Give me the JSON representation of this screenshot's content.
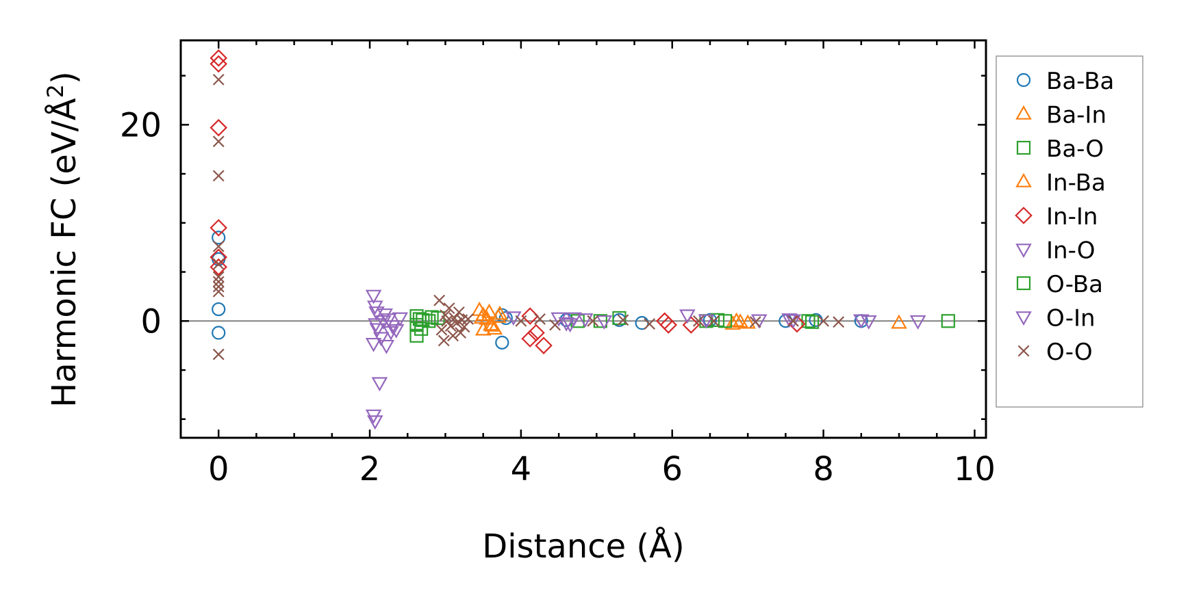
{
  "chart_data": {
    "type": "scatter",
    "xlabel": "Distance (Å)",
    "ylabel": "Harmonic FC (eV/Å²)",
    "xlim": [
      -0.5,
      10.15
    ],
    "ylim": [
      -11.9,
      28.6
    ],
    "xticks": [
      0,
      2,
      4,
      6,
      8,
      10
    ],
    "xtick_labels": [
      "0",
      "2",
      "4",
      "6",
      "8",
      "10"
    ],
    "yticks": [
      0,
      20
    ],
    "ytick_labels": [
      "0",
      "20"
    ],
    "reference_line_y": 0,
    "grid": false,
    "legend_position": "outside-right",
    "series": [
      {
        "name": "Ba-Ba",
        "color": "#1f77b4",
        "marker": "circle",
        "points": [
          [
            0,
            8.5
          ],
          [
            0,
            6.3
          ],
          [
            0,
            1.2
          ],
          [
            0,
            -1.2
          ],
          [
            3.75,
            0.6
          ],
          [
            3.75,
            -2.2
          ],
          [
            3.8,
            0.3
          ],
          [
            4.6,
            0.1
          ],
          [
            5.3,
            0.1
          ],
          [
            5.6,
            -0.2
          ],
          [
            6.5,
            0.1
          ],
          [
            7.5,
            0.0
          ],
          [
            7.9,
            0.1
          ],
          [
            8.5,
            0.0
          ]
        ]
      },
      {
        "name": "Ba-In",
        "color": "#ff7f0e",
        "marker": "triangle-up",
        "points": [
          [
            3.45,
            1.1
          ],
          [
            3.5,
            0.6
          ],
          [
            3.55,
            0.2
          ],
          [
            3.6,
            -0.4
          ],
          [
            3.65,
            -0.8
          ],
          [
            3.7,
            0.4
          ],
          [
            3.5,
            -0.9
          ],
          [
            3.58,
            0.9
          ],
          [
            6.8,
            -0.3
          ],
          [
            6.85,
            0.0
          ],
          [
            7.0,
            -0.2
          ],
          [
            9.0,
            -0.2
          ]
        ]
      },
      {
        "name": "Ba-O",
        "color": "#2ca02c",
        "marker": "square",
        "points": [
          [
            2.62,
            0.5
          ],
          [
            2.62,
            -0.4
          ],
          [
            2.62,
            -1.5
          ],
          [
            2.7,
            0.1
          ],
          [
            2.78,
            0.0
          ],
          [
            2.9,
            0.3
          ],
          [
            4.75,
            0.0
          ],
          [
            5.05,
            0.0
          ],
          [
            5.3,
            0.3
          ],
          [
            6.45,
            0.0
          ],
          [
            6.6,
            0.1
          ],
          [
            7.8,
            0.0
          ],
          [
            9.65,
            0.0
          ]
        ]
      },
      {
        "name": "In-Ba",
        "color": "#ff7f0e",
        "marker": "triangle-up",
        "points": [
          [
            3.48,
            0.3
          ],
          [
            3.62,
            -0.5
          ],
          [
            3.72,
            0.7
          ],
          [
            6.9,
            -0.1
          ]
        ]
      },
      {
        "name": "In-In",
        "color": "#d62728",
        "marker": "diamond",
        "points": [
          [
            0,
            26.8
          ],
          [
            0,
            26.2
          ],
          [
            0,
            19.7
          ],
          [
            0,
            9.5
          ],
          [
            0,
            6.5
          ],
          [
            0,
            5.5
          ],
          [
            4.12,
            -1.8
          ],
          [
            4.12,
            0.5
          ],
          [
            4.3,
            -2.5
          ],
          [
            4.2,
            -1.2
          ],
          [
            5.9,
            0.0
          ],
          [
            5.95,
            -0.4
          ],
          [
            6.25,
            -0.4
          ],
          [
            7.65,
            -0.3
          ]
        ]
      },
      {
        "name": "In-O",
        "color": "#9467bd",
        "marker": "triangle-down",
        "points": [
          [
            2.05,
            2.6
          ],
          [
            2.07,
            1.5
          ],
          [
            2.1,
            -0.8
          ],
          [
            2.05,
            -2.3
          ],
          [
            2.08,
            -0.3
          ],
          [
            2.15,
            -1.7
          ],
          [
            2.2,
            0.7
          ],
          [
            2.22,
            -2.5
          ],
          [
            2.25,
            0.2
          ],
          [
            2.3,
            -0.5
          ],
          [
            2.35,
            -0.9
          ],
          [
            2.4,
            0.3
          ],
          [
            2.13,
            -6.3
          ],
          [
            2.05,
            -9.6
          ],
          [
            2.07,
            -10.2
          ],
          [
            3.9,
            0.4
          ],
          [
            4.7,
            0.3
          ],
          [
            4.85,
            0.2
          ],
          [
            4.65,
            -0.3
          ],
          [
            6.2,
            0.6
          ],
          [
            7.15,
            0.1
          ],
          [
            7.6,
            0.1
          ],
          [
            8.5,
            0.1
          ],
          [
            9.25,
            0.0
          ]
        ]
      },
      {
        "name": "O-Ba",
        "color": "#2ca02c",
        "marker": "square",
        "points": [
          [
            2.66,
            0.2
          ],
          [
            2.68,
            -0.8
          ],
          [
            2.82,
            0.4
          ],
          [
            6.7,
            0.0
          ],
          [
            7.85,
            -0.1
          ]
        ]
      },
      {
        "name": "O-In",
        "color": "#9467bd",
        "marker": "triangle-down",
        "points": [
          [
            2.09,
            0.9
          ],
          [
            2.18,
            0.0
          ],
          [
            2.28,
            -1.1
          ],
          [
            4.5,
            0.3
          ],
          [
            4.6,
            -0.2
          ],
          [
            5.1,
            0.0
          ],
          [
            6.45,
            0.1
          ],
          [
            7.55,
            0.2
          ],
          [
            8.6,
            0.0
          ]
        ]
      },
      {
        "name": "O-O",
        "color": "#8c564b",
        "marker": "x",
        "points": [
          [
            0,
            24.6
          ],
          [
            0,
            18.3
          ],
          [
            0,
            14.8
          ],
          [
            0,
            7.6
          ],
          [
            0,
            5.8
          ],
          [
            0,
            4.5
          ],
          [
            0,
            4.0
          ],
          [
            0,
            3.5
          ],
          [
            0,
            3.0
          ],
          [
            0,
            -3.4
          ],
          [
            2.92,
            2.1
          ],
          [
            2.95,
            -0.9
          ],
          [
            2.98,
            -2.0
          ],
          [
            3.0,
            0.6
          ],
          [
            3.02,
            0.0
          ],
          [
            3.05,
            1.3
          ],
          [
            3.07,
            -0.5
          ],
          [
            3.1,
            -1.5
          ],
          [
            3.12,
            0.3
          ],
          [
            3.15,
            -0.2
          ],
          [
            3.18,
            0.9
          ],
          [
            3.2,
            -1.2
          ],
          [
            3.22,
            0.1
          ],
          [
            3.25,
            -0.6
          ],
          [
            3.3,
            0.2
          ],
          [
            4.0,
            0.0
          ],
          [
            4.25,
            0.2
          ],
          [
            4.45,
            -0.4
          ],
          [
            4.95,
            0.0
          ],
          [
            5.35,
            0.1
          ],
          [
            5.7,
            -0.3
          ],
          [
            6.35,
            0.0
          ],
          [
            6.55,
            0.0
          ],
          [
            7.1,
            -0.1
          ],
          [
            7.6,
            0.0
          ],
          [
            8.0,
            0.0
          ],
          [
            8.2,
            -0.1
          ]
        ]
      }
    ]
  }
}
